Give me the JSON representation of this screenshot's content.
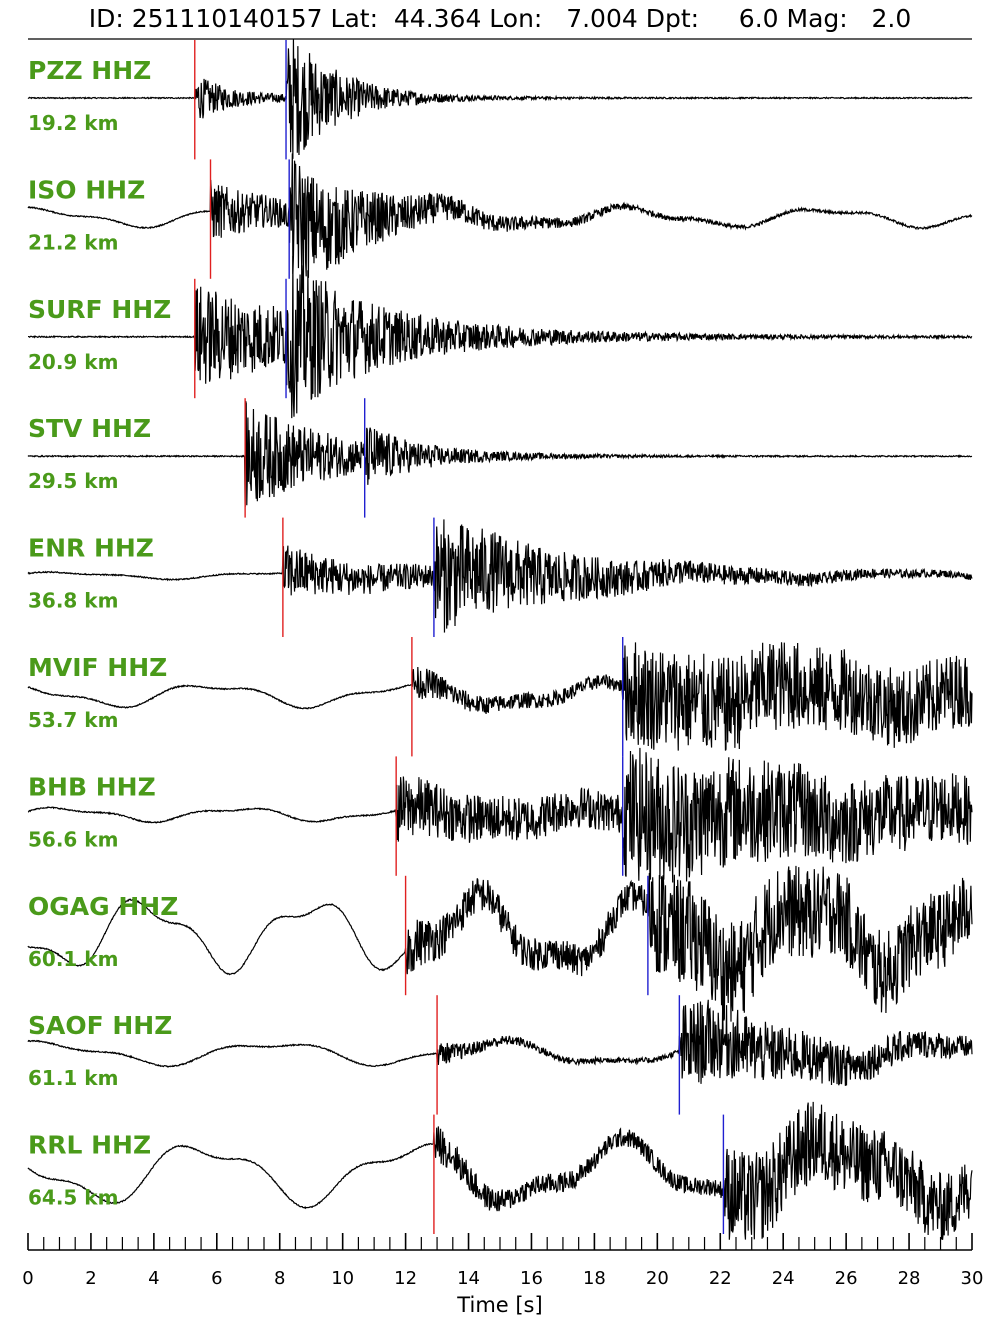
{
  "title": "ID: 251110140157 Lat:  44.364 Lon:   7.004 Dpt:     6.0 Mag:   2.0",
  "chart_data": {
    "type": "line",
    "xlabel": "Time [s]",
    "xlim": [
      0,
      30
    ],
    "x_ticks": [
      0,
      2,
      4,
      6,
      8,
      10,
      12,
      14,
      16,
      18,
      20,
      22,
      24,
      26,
      28,
      30
    ],
    "x_tick_labels": [
      "0",
      "2",
      "4",
      "6",
      "8",
      "10",
      "12",
      "14",
      "16",
      "18",
      "20",
      "22",
      "24",
      "26",
      "28",
      "30"
    ],
    "minor_tick_step": 0.5,
    "pick_colors": {
      "p": "#e02020",
      "s": "#2020d0"
    },
    "trace_color": "#000000",
    "traces": [
      {
        "station": "PZZ HHZ",
        "distance": "19.2 km",
        "p_pick": 5.3,
        "s_pick": 8.2
      },
      {
        "station": "ISO HHZ",
        "distance": "21.2 km",
        "p_pick": 5.8,
        "s_pick": 8.3
      },
      {
        "station": "SURF HHZ",
        "distance": "20.9 km",
        "p_pick": 5.3,
        "s_pick": 8.2
      },
      {
        "station": "STV HHZ",
        "distance": "29.5 km",
        "p_pick": 6.9,
        "s_pick": 10.7
      },
      {
        "station": "ENR HHZ",
        "distance": "36.8 km",
        "p_pick": 8.1,
        "s_pick": 12.9
      },
      {
        "station": "MVIF HHZ",
        "distance": "53.7 km",
        "p_pick": 12.2,
        "s_pick": 18.9
      },
      {
        "station": "BHB HHZ",
        "distance": "56.6 km",
        "p_pick": 11.7,
        "s_pick": 18.9
      },
      {
        "station": "OGAG HHZ",
        "distance": "60.1 km",
        "p_pick": 12.0,
        "s_pick": 19.7
      },
      {
        "station": "SAOF HHZ",
        "distance": "61.1 km",
        "p_pick": 13.0,
        "s_pick": 20.7
      },
      {
        "station": "RRL HHZ",
        "distance": "64.5 km",
        "p_pick": 12.9,
        "s_pick": 22.1
      }
    ]
  }
}
